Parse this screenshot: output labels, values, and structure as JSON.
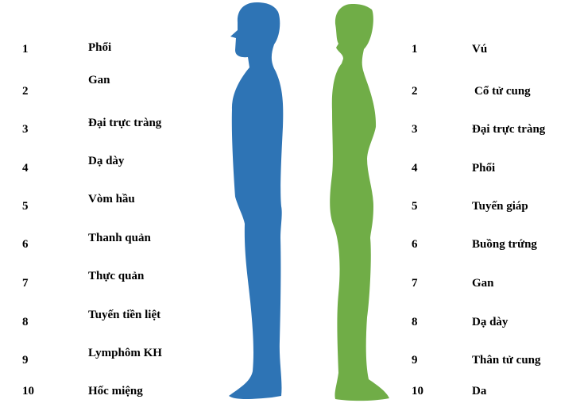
{
  "colors": {
    "male": "#2E74B5",
    "female": "#70AD47",
    "text": "#000000"
  },
  "male": {
    "icon": "male-silhouette",
    "items": [
      {
        "number": "1",
        "name": "Phổi"
      },
      {
        "number": "2",
        "name": "Gan"
      },
      {
        "number": "3",
        "name": "Đại trực tràng"
      },
      {
        "number": "4",
        "name": "Dạ dày"
      },
      {
        "number": "5",
        "name": "Vòm hầu"
      },
      {
        "number": "6",
        "name": "Thanh quản"
      },
      {
        "number": "7",
        "name": "Thực quản"
      },
      {
        "number": "8",
        "name": "Tuyến tiền liệt"
      },
      {
        "number": "9",
        "name": "Lymphôm KH"
      },
      {
        "number": "10",
        "name": "Hốc miệng"
      }
    ]
  },
  "female": {
    "icon": "female-silhouette",
    "items": [
      {
        "number": "1",
        "name": "Vú"
      },
      {
        "number": "2",
        "name": "Cổ tử cung"
      },
      {
        "number": "3",
        "name": "Đại trực tràng"
      },
      {
        "number": "4",
        "name": "Phổi"
      },
      {
        "number": "5",
        "name": "Tuyến giáp"
      },
      {
        "number": "6",
        "name": "Buồng trứng"
      },
      {
        "number": "7",
        "name": "Gan"
      },
      {
        "number": "8",
        "name": "Dạ dày"
      },
      {
        "number": "9",
        "name": "Thân tử cung"
      },
      {
        "number": "10",
        "name": "Da"
      }
    ]
  }
}
